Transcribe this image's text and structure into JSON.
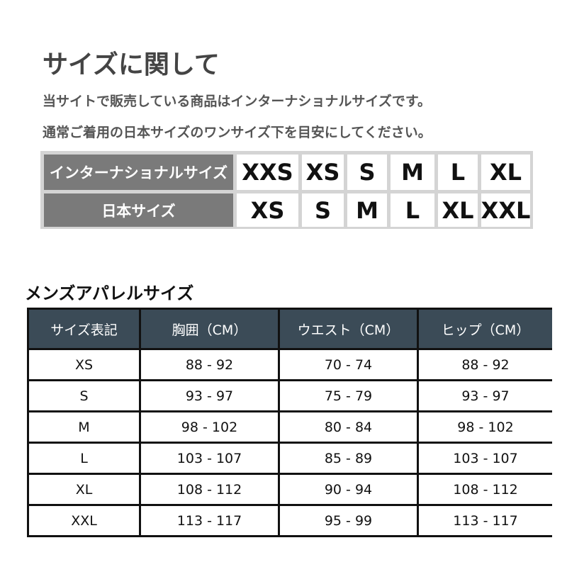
{
  "header": {
    "title": "サイズに関して",
    "lines": [
      "当サイトで販売している商品はインターナショナルサイズです。",
      "通常ご着用の日本サイズのワンサイズ下を目安にしてください。"
    ]
  },
  "conversion": {
    "rows": [
      {
        "label": "インターナショナルサイズ",
        "sizes": [
          "XXS",
          "XS",
          "S",
          "M",
          "L",
          "XL"
        ]
      },
      {
        "label": "日本サイズ",
        "sizes": [
          "XS",
          "S",
          "M",
          "L",
          "XL",
          "XXL"
        ]
      }
    ]
  },
  "mens": {
    "title": "メンズアパレルサイズ",
    "columns": [
      "サイズ表記",
      "胸囲（CM）",
      "ウエスト（CM）",
      "ヒップ（CM）"
    ],
    "rows": [
      [
        "XS",
        "88 - 92",
        "70 - 74",
        "88 - 92"
      ],
      [
        "S",
        "93 - 97",
        "75 - 79",
        "93 - 97"
      ],
      [
        "M",
        "98 - 102",
        "80 - 84",
        "98 - 102"
      ],
      [
        "L",
        "103 - 107",
        "85 - 89",
        "103 - 107"
      ],
      [
        "XL",
        "108 - 112",
        "90 - 94",
        "108 - 112"
      ],
      [
        "XXL",
        "113 - 117",
        "95 - 99",
        "113 - 117"
      ]
    ]
  }
}
